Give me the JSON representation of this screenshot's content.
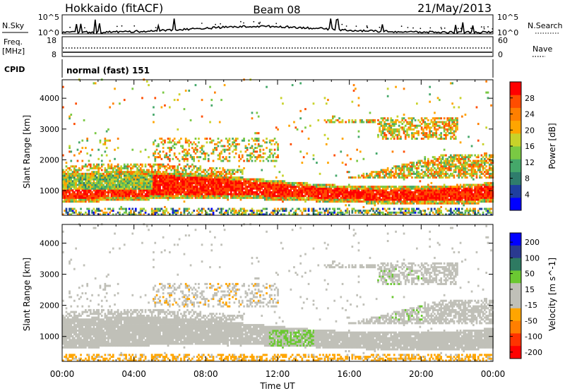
{
  "header": {
    "site": "Hokkaido (fitACF)",
    "beam": "Beam 08",
    "date": "21/May/2013"
  },
  "noise_panel": {
    "left_label": "N.Sky",
    "right_label": "N.Search",
    "left_ticks": [
      "10^5",
      "10^0"
    ],
    "right_ticks": [
      "10^5",
      "10^0"
    ],
    "scale": "log"
  },
  "freq_panel": {
    "left_label_line1": "Freq.",
    "left_label_line2": "[MHz]",
    "right_label": "Nave",
    "left_ticks": [
      "18",
      "8"
    ],
    "right_ticks": [
      "60",
      "0"
    ]
  },
  "cpid_panel": {
    "label": "CPID",
    "value": "normal (fast) 151"
  },
  "colors": {
    "power": [
      "#0000ff",
      "#1f3fa0",
      "#2f7d6c",
      "#45a86a",
      "#7ac943",
      "#c8d22a",
      "#ffa500",
      "#ff7f00",
      "#ff4d00",
      "#ff0000"
    ],
    "velocity": [
      "#0000ff",
      "#2a3a90",
      "#2e7a62",
      "#6bc832",
      "#c0c0b8",
      "#c0c0b8",
      "#ffa500",
      "#ff7f00",
      "#ff3300",
      "#ff0000"
    ]
  },
  "chart_data": [
    {
      "type": "heatmap",
      "name": "Power",
      "ylabel": "Slant Range [km]",
      "xlim": [
        "00:00",
        "00:00"
      ],
      "ylim": [
        200,
        4600
      ],
      "yticks": [
        1000,
        2000,
        3000,
        4000
      ],
      "colorbar": {
        "label": "Power [dB]",
        "ticks": [
          4,
          8,
          12,
          16,
          20,
          24,
          28
        ],
        "range": [
          0,
          32
        ]
      },
      "features": [
        {
          "t_start_h": 0,
          "t_end_h": 24,
          "range_lo_km": 600,
          "range_hi_km": 1400,
          "level": 22,
          "desc_hidden": true
        },
        {
          "t_start_h": 16,
          "t_end_h": 24,
          "range_lo_km": 1400,
          "range_hi_km": 2100,
          "level": 20,
          "desc_hidden": true
        },
        {
          "t_start_h": 17,
          "t_end_h": 21,
          "range_lo_km": 2800,
          "range_hi_km": 3300,
          "level": 22,
          "desc_hidden": true
        }
      ]
    },
    {
      "type": "heatmap",
      "name": "Velocity",
      "ylabel": "Slant Range [km]",
      "xlabel": "Time UT",
      "xticks": [
        "00:00",
        "04:00",
        "08:00",
        "12:00",
        "16:00",
        "20:00",
        "00:00"
      ],
      "ylim": [
        200,
        4600
      ],
      "yticks": [
        1000,
        2000,
        3000,
        4000
      ],
      "colorbar": {
        "label": "Velocity [m s^-1]",
        "ticks": [
          200,
          100,
          50,
          15,
          -15,
          -50,
          -100,
          -200
        ],
        "range": [
          -250,
          250
        ]
      }
    }
  ]
}
